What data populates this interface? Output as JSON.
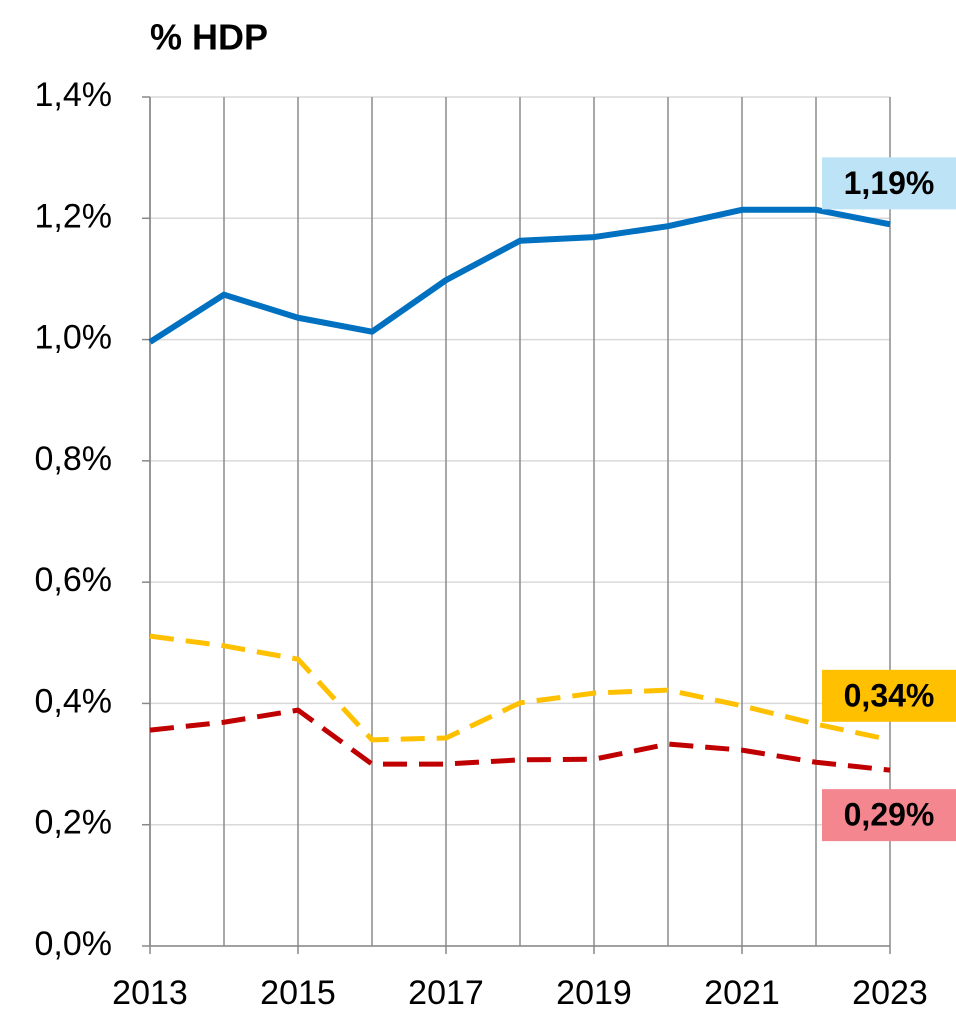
{
  "chart_data": {
    "type": "line",
    "title": "% HDP",
    "x": [
      2013,
      2014,
      2015,
      2016,
      2017,
      2018,
      2019,
      2020,
      2021,
      2022,
      2023
    ],
    "xlim": [
      2013,
      2023
    ],
    "xticks": [
      2013,
      2015,
      2017,
      2019,
      2021,
      2023
    ],
    "ylim": [
      0,
      1.4
    ],
    "yticks": [
      {
        "value": 0,
        "label": "0,0%"
      },
      {
        "value": 0.2,
        "label": "0,2%"
      },
      {
        "value": 0.4,
        "label": "0,4%"
      },
      {
        "value": 0.6,
        "label": "0,6%"
      },
      {
        "value": 0.8,
        "label": "0,8%"
      },
      {
        "value": 1.0,
        "label": "1,0%"
      },
      {
        "value": 1.2,
        "label": "1,2%"
      },
      {
        "value": 1.4,
        "label": "1,4%"
      }
    ],
    "grid": true,
    "series": [
      {
        "color": "#0070c0",
        "dash": false,
        "label_color": "#bde3f7",
        "values": [
          0.996,
          1.074,
          1.036,
          1.013,
          1.098,
          1.163,
          1.169,
          1.187,
          1.214,
          1.214,
          1.19
        ],
        "value_labels": [
          null,
          null,
          null,
          null,
          null,
          null,
          null,
          null,
          null,
          null,
          "1,19%"
        ]
      },
      {
        "color": "#ffc000",
        "dash": true,
        "label_color": "#ffc000",
        "values": [
          0.511,
          0.495,
          0.473,
          0.34,
          0.343,
          0.401,
          0.417,
          0.422,
          0.396,
          0.366,
          0.34
        ],
        "value_labels": [
          null,
          null,
          null,
          null,
          null,
          null,
          null,
          null,
          null,
          null,
          "0,34%"
        ]
      },
      {
        "color": "#c00000",
        "dash": true,
        "label_color": "#f4868f",
        "values": [
          0.356,
          0.369,
          0.389,
          0.3,
          0.3,
          0.307,
          0.308,
          0.333,
          0.323,
          0.303,
          0.29
        ],
        "value_labels": [
          null,
          null,
          null,
          null,
          null,
          null,
          null,
          null,
          null,
          null,
          "0,29%"
        ]
      }
    ]
  }
}
